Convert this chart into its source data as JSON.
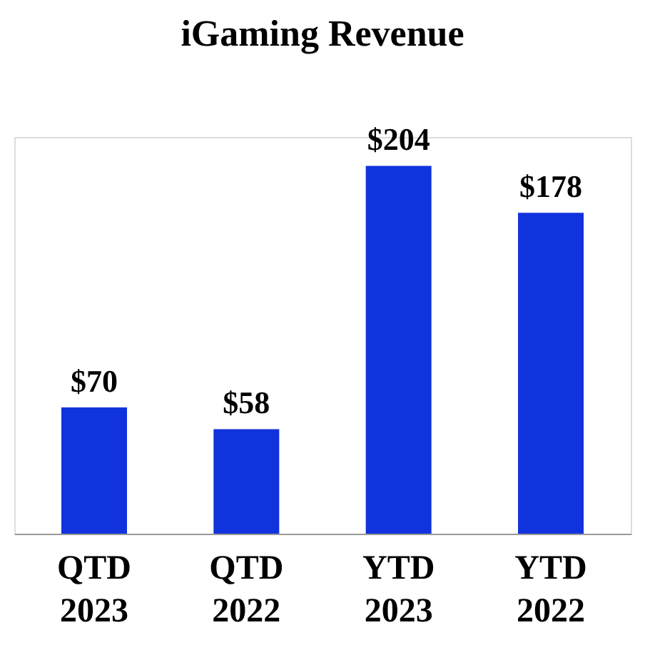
{
  "chart_data": {
    "type": "bar",
    "title": "iGaming Revenue",
    "categories": [
      "QTD\n2023",
      "QTD\n2022",
      "YTD\n2023",
      "YTD\n2022"
    ],
    "values": [
      70,
      58,
      204,
      178
    ],
    "value_labels": [
      "$70",
      "$58",
      "$204",
      "$178"
    ],
    "color": "#1133dd"
  }
}
